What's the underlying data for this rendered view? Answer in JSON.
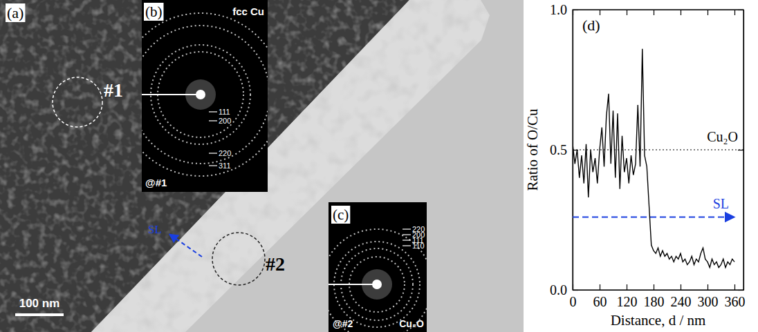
{
  "chart_data": {
    "type": "line",
    "panel": "(d)",
    "xlabel": "Distance, d / nm",
    "ylabel": "Ratio of O/Cu",
    "x": [
      0,
      5,
      10,
      15,
      20,
      25,
      30,
      35,
      40,
      45,
      50,
      55,
      60,
      65,
      70,
      75,
      80,
      85,
      90,
      95,
      100,
      105,
      110,
      115,
      120,
      125,
      130,
      135,
      140,
      145,
      150,
      155,
      160,
      165,
      170,
      175,
      180,
      185,
      190,
      195,
      200,
      205,
      210,
      215,
      220,
      225,
      230,
      235,
      240,
      245,
      250,
      255,
      260,
      265,
      270,
      275,
      280,
      285,
      290,
      295,
      300,
      305,
      310,
      315,
      320,
      325,
      330,
      335,
      340,
      345,
      350,
      355,
      360
    ],
    "values": [
      0.52,
      0.45,
      0.5,
      0.4,
      0.48,
      0.38,
      0.52,
      0.33,
      0.5,
      0.42,
      0.47,
      0.38,
      0.5,
      0.58,
      0.44,
      0.62,
      0.7,
      0.45,
      0.64,
      0.4,
      0.63,
      0.36,
      0.55,
      0.42,
      0.47,
      0.38,
      0.48,
      0.41,
      0.45,
      0.66,
      0.44,
      0.86,
      0.48,
      0.44,
      0.3,
      0.16,
      0.14,
      0.13,
      0.15,
      0.12,
      0.14,
      0.12,
      0.13,
      0.11,
      0.12,
      0.1,
      0.12,
      0.11,
      0.13,
      0.1,
      0.11,
      0.09,
      0.1,
      0.12,
      0.09,
      0.11,
      0.1,
      0.13,
      0.15,
      0.11,
      0.1,
      0.08,
      0.11,
      0.09,
      0.1,
      0.08,
      0.09,
      0.11,
      0.08,
      0.1,
      0.09,
      0.11,
      0.1
    ],
    "color": "#000000",
    "xlim": [
      0,
      380
    ],
    "xticks": [
      0,
      60,
      120,
      180,
      240,
      300,
      360
    ],
    "ylim": [
      0,
      1
    ],
    "yticks": [
      {
        "value": 0,
        "label": "0.0"
      },
      {
        "value": 0.5,
        "label": "0.5"
      },
      {
        "value": 1,
        "label": "1.0"
      }
    ],
    "reference_lines": [
      {
        "label": "Cu₂O",
        "y": 0.5,
        "line_style": "dotted",
        "color": "#000000"
      },
      {
        "label": "SL",
        "y": 0.26,
        "x": [
          0,
          360
        ],
        "line_style": "dashed",
        "color": "#1a3fe0",
        "marker": "arrow"
      }
    ]
  },
  "image_panels": {
    "a": {
      "label": "(a)",
      "regions": [
        "#1",
        "#2"
      ],
      "arrow_label": "SL",
      "scale_bar": "100 nm"
    },
    "b": {
      "label": "(b)",
      "phase": "fcc Cu",
      "site": "@#1",
      "rings": [
        "111",
        "200",
        "220",
        "311"
      ]
    },
    "c": {
      "label": "(c)",
      "phase": "Cu₂O",
      "site": "@#2",
      "rings": [
        "220",
        "200",
        "111",
        "110"
      ]
    }
  }
}
